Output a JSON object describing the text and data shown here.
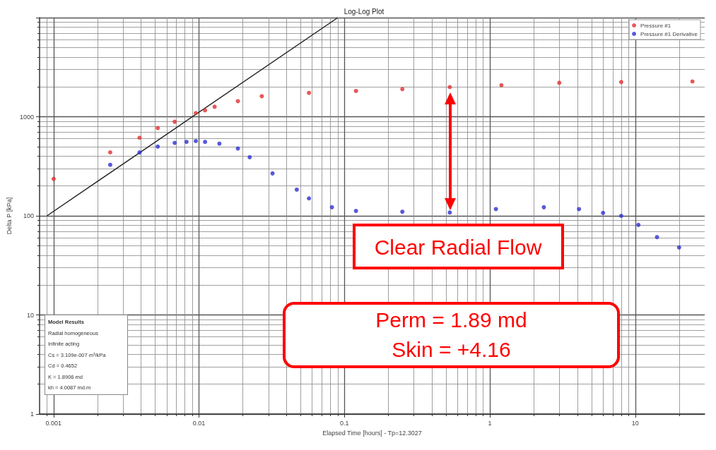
{
  "chart_data": {
    "type": "scatter",
    "title": "Log-Log Plot",
    "xlabel": "Elapsed Time [hours] - Tp=12.3027",
    "ylabel": "Delta P [kPa]",
    "log": "xy",
    "xlim": [
      0.0008,
      30
    ],
    "ylim": [
      1,
      10000
    ],
    "xticks": [
      0.001,
      0.01,
      0.1,
      1,
      10
    ],
    "yticks": [
      1,
      10,
      100,
      1000,
      {
        "value": 10000,
        "label": null
      }
    ],
    "grid": true,
    "legend": "top right",
    "marker": "circle",
    "series": [
      {
        "name": "Pressure #1",
        "color": "#e03030",
        "x": [
          0.001,
          0.00245,
          0.0039,
          0.0052,
          0.0068,
          0.0095,
          0.011,
          0.0128,
          0.0185,
          0.027,
          0.057,
          0.12,
          0.25,
          0.53,
          1.2,
          3.0,
          8.0,
          24.7
        ],
        "values": [
          236,
          437,
          614,
          769,
          890,
          1090,
          1160,
          1260,
          1436,
          1610,
          1740,
          1820,
          1900,
          1990,
          2080,
          2200,
          2240,
          2270
        ]
      },
      {
        "name": "Pressure #1 Derivative",
        "color": "#3030d0",
        "x": [
          0.00245,
          0.0039,
          0.0052,
          0.0068,
          0.0082,
          0.0095,
          0.011,
          0.0138,
          0.0185,
          0.0223,
          0.032,
          0.047,
          0.057,
          0.082,
          0.12,
          0.25,
          0.53,
          1.1,
          2.35,
          4.1,
          6.0,
          8.0,
          10.5,
          14.1,
          20
        ],
        "values": [
          327,
          436,
          500,
          545,
          557,
          568,
          557,
          535,
          478,
          390,
          268,
          184,
          150,
          122,
          112,
          110,
          108,
          117,
          122,
          117,
          107,
          100,
          81,
          61,
          48
        ]
      },
      {
        "type": "line",
        "marker": "none",
        "color": "#202020",
        "x": [
          0.0009,
          0.09
        ],
        "values": [
          100,
          10000
        ]
      }
    ],
    "annotations": [
      "Clear Radial Flow",
      "Perm = 1.89 md",
      "Skin = +4.16",
      "Model Results",
      "Radial homogeneous",
      "Infinite acting",
      "Cs = 3.109e-007 m³/kPa",
      "Cd = 0.4652",
      "K = 1.8906 md",
      "kh = 4.0087 md.m"
    ]
  }
}
